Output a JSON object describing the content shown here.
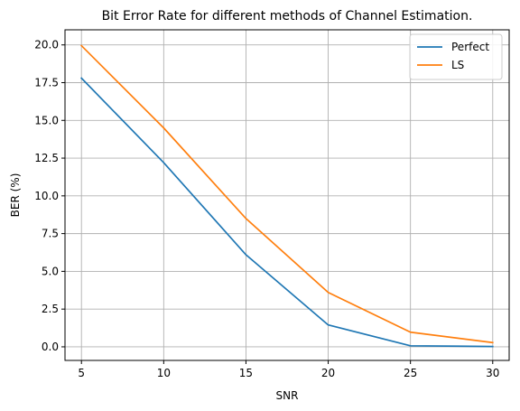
{
  "chart_data": {
    "type": "line",
    "title": "Bit Error Rate for different methods of Channel Estimation.",
    "xlabel": "SNR",
    "ylabel": "BER (%)",
    "x": [
      5,
      10,
      15,
      20,
      25,
      30
    ],
    "xlim": [
      4,
      31
    ],
    "ylim": [
      -0.9,
      21.0
    ],
    "xticks": [
      5,
      10,
      15,
      20,
      25,
      30
    ],
    "yticks": [
      0.0,
      2.5,
      5.0,
      7.5,
      10.0,
      12.5,
      15.0,
      17.5,
      20.0
    ],
    "xtick_labels": [
      "5",
      "10",
      "15",
      "20",
      "25",
      "30"
    ],
    "ytick_labels": [
      "0.0",
      "2.5",
      "5.0",
      "7.5",
      "10.0",
      "12.5",
      "15.0",
      "17.5",
      "20.0"
    ],
    "grid": true,
    "legend_position": "top-right",
    "series": [
      {
        "name": "Perfect",
        "color": "#1f77b4",
        "values": [
          17.8,
          12.2,
          6.1,
          1.45,
          0.07,
          0.02
        ]
      },
      {
        "name": "LS",
        "color": "#ff7f0e",
        "values": [
          19.95,
          14.5,
          8.5,
          3.6,
          0.97,
          0.28
        ]
      }
    ]
  }
}
